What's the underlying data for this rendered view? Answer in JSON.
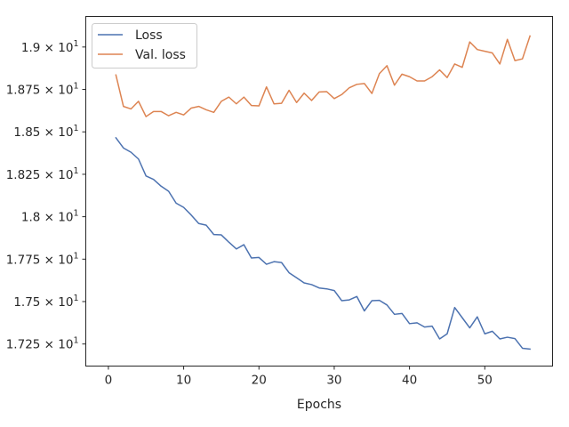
{
  "chart_data": {
    "type": "line",
    "title": "",
    "xlabel": "Epochs",
    "ylabel": "",
    "xlim": [
      -3,
      59
    ],
    "ylim": [
      17.12,
      19.18
    ],
    "xticks": [
      0,
      10,
      20,
      30,
      40,
      50
    ],
    "xtick_labels": [
      "0",
      "10",
      "20",
      "30",
      "40",
      "50"
    ],
    "yticks": [
      17.25,
      17.5,
      17.75,
      18.0,
      18.25,
      18.5,
      18.75,
      19.0
    ],
    "ytick_labels": [
      {
        "mantissa": "1.725",
        "base": "10",
        "exp": "1"
      },
      {
        "mantissa": "1.75",
        "base": "10",
        "exp": "1"
      },
      {
        "mantissa": "1.775",
        "base": "10",
        "exp": "1"
      },
      {
        "mantissa": "1.8",
        "base": "10",
        "exp": "1"
      },
      {
        "mantissa": "1.825",
        "base": "10",
        "exp": "1"
      },
      {
        "mantissa": "1.85",
        "base": "10",
        "exp": "1"
      },
      {
        "mantissa": "1.875",
        "base": "10",
        "exp": "1"
      },
      {
        "mantissa": "1.9",
        "base": "10",
        "exp": "1"
      }
    ],
    "grid": false,
    "legend_position": "top-left",
    "series": [
      {
        "name": "Loss",
        "color": "#4c72b0",
        "x": [
          1,
          2,
          3,
          4,
          5,
          6,
          7,
          8,
          9,
          10,
          11,
          12,
          13,
          14,
          15,
          16,
          17,
          18,
          19,
          20,
          21,
          22,
          23,
          24,
          25,
          26,
          27,
          28,
          29,
          30,
          31,
          32,
          33,
          34,
          35,
          36,
          37,
          38,
          39,
          40,
          41,
          42,
          43,
          44,
          45,
          46,
          47,
          48,
          49,
          50,
          51,
          52,
          53,
          54,
          55,
          56
        ],
        "values": [
          18.465,
          18.405,
          18.38,
          18.34,
          18.24,
          18.22,
          18.18,
          18.15,
          18.08,
          18.055,
          18.01,
          17.96,
          17.95,
          17.895,
          17.893,
          17.85,
          17.81,
          17.835,
          17.757,
          17.76,
          17.72,
          17.735,
          17.73,
          17.67,
          17.64,
          17.61,
          17.6,
          17.58,
          17.575,
          17.565,
          17.505,
          17.51,
          17.53,
          17.445,
          17.505,
          17.507,
          17.48,
          17.425,
          17.43,
          17.37,
          17.375,
          17.35,
          17.355,
          17.28,
          17.31,
          17.465,
          17.405,
          17.345,
          17.41,
          17.31,
          17.325,
          17.28,
          17.29,
          17.282,
          17.225,
          17.22
        ]
      },
      {
        "name": "Val. loss",
        "color": "#dd8452",
        "x": [
          1,
          2,
          3,
          4,
          5,
          6,
          7,
          8,
          9,
          10,
          11,
          12,
          13,
          14,
          15,
          16,
          17,
          18,
          19,
          20,
          21,
          22,
          23,
          24,
          25,
          26,
          27,
          28,
          29,
          30,
          31,
          32,
          33,
          34,
          35,
          36,
          37,
          38,
          39,
          40,
          41,
          42,
          43,
          44,
          45,
          46,
          47,
          48,
          49,
          50,
          51,
          52,
          53,
          54,
          55,
          56
        ],
        "values": [
          18.835,
          18.65,
          18.635,
          18.68,
          18.59,
          18.62,
          18.62,
          18.595,
          18.615,
          18.6,
          18.64,
          18.65,
          18.63,
          18.615,
          18.68,
          18.705,
          18.665,
          18.705,
          18.655,
          18.653,
          18.765,
          18.665,
          18.668,
          18.745,
          18.673,
          18.728,
          18.685,
          18.735,
          18.737,
          18.696,
          18.72,
          18.76,
          18.78,
          18.785,
          18.726,
          18.843,
          18.89,
          18.775,
          18.84,
          18.825,
          18.8,
          18.8,
          18.825,
          18.865,
          18.82,
          18.9,
          18.88,
          19.03,
          18.985,
          18.975,
          18.965,
          18.9,
          19.045,
          18.92,
          18.93,
          19.065
        ]
      }
    ]
  }
}
